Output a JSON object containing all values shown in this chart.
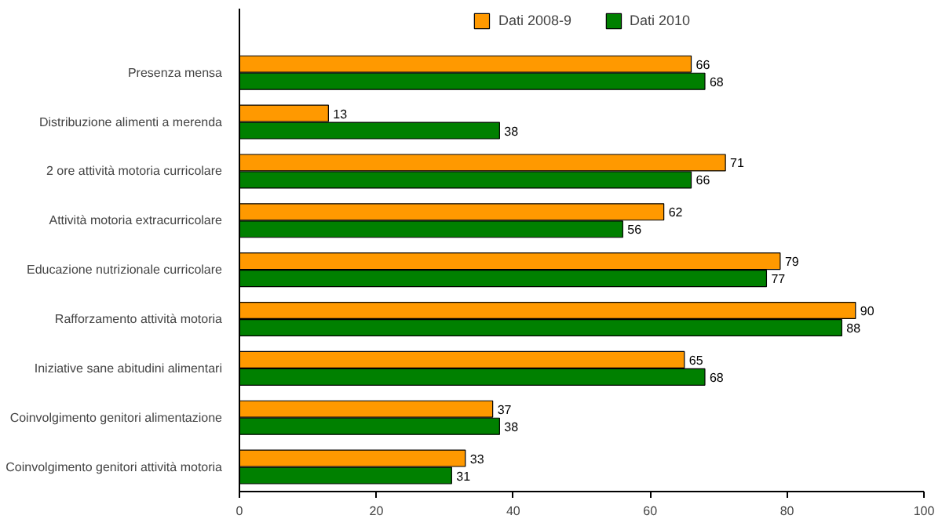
{
  "chart_data": {
    "type": "bar",
    "orientation": "horizontal",
    "categories": [
      "Presenza mensa",
      "Distribuzione alimenti a merenda",
      "2 ore attività motoria curricolare",
      "Attività motoria extracurricolare",
      "Educazione nutrizionale curricolare",
      "Rafforzamento attività motoria",
      "Iniziative sane abitudini alimentari",
      "Coinvolgimento genitori alimentazione",
      "Coinvolgimento genitori attività motoria"
    ],
    "series": [
      {
        "name": "Dati 2008-9",
        "color": "#ff9900",
        "values": [
          66,
          13,
          71,
          62,
          79,
          90,
          65,
          37,
          33
        ]
      },
      {
        "name": "Dati 2010",
        "color": "#008000",
        "values": [
          68,
          38,
          66,
          56,
          77,
          88,
          68,
          38,
          31
        ]
      }
    ],
    "xlim": [
      0,
      100
    ],
    "xticks": [
      0,
      20,
      40,
      60,
      80,
      100
    ],
    "data_labels": true,
    "legend": "top",
    "grid": false
  }
}
